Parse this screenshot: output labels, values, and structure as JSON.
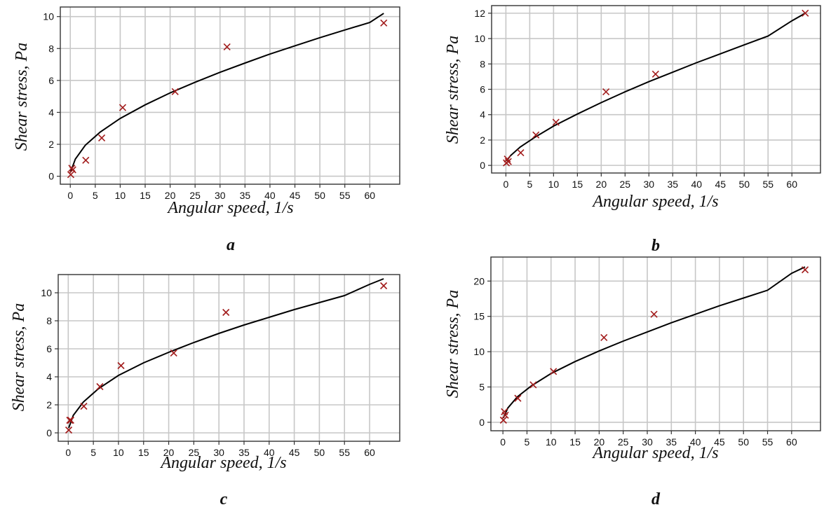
{
  "chart_data": [
    {
      "type": "scatter",
      "panel_label": "a",
      "xlabel": "Angular speed, 1/s",
      "ylabel": "Shear stress, Pa",
      "xlim": [
        -2,
        66
      ],
      "ylim": [
        -0.5,
        10.6
      ],
      "xticks": [
        0,
        5,
        10,
        15,
        20,
        25,
        30,
        35,
        40,
        45,
        50,
        55,
        60
      ],
      "yticks": [
        0,
        2,
        4,
        6,
        8,
        10
      ],
      "grid": true,
      "series": [
        {
          "kind": "measured",
          "color": "#a21c1c",
          "x": [
            0.1,
            0.3,
            0.5,
            3.1,
            6.3,
            10.5,
            21.0,
            31.4,
            62.8
          ],
          "y": [
            0.1,
            0.5,
            0.4,
            1.0,
            2.4,
            4.3,
            5.3,
            8.1,
            9.6
          ]
        },
        {
          "kind": "fit",
          "color": "#000000",
          "x": [
            0.1,
            1,
            3,
            6,
            10,
            15,
            20,
            25,
            30,
            35,
            40,
            45,
            50,
            55,
            60,
            62.8
          ],
          "y": [
            0.3,
            1.07,
            1.94,
            2.77,
            3.62,
            4.47,
            5.22,
            5.89,
            6.51,
            7.09,
            7.65,
            8.17,
            8.68,
            9.16,
            9.63,
            10.2
          ]
        }
      ]
    },
    {
      "type": "scatter",
      "panel_label": "b",
      "xlabel": "Angular speed, 1/s",
      "ylabel": "Shear stress, Pa",
      "xlim": [
        -3,
        66
      ],
      "ylim": [
        -0.6,
        12.6
      ],
      "xticks": [
        0,
        5,
        10,
        15,
        20,
        25,
        30,
        35,
        40,
        45,
        50,
        55,
        60
      ],
      "yticks": [
        0,
        2,
        4,
        6,
        8,
        10,
        12
      ],
      "grid": true,
      "series": [
        {
          "kind": "measured",
          "color": "#a21c1c",
          "x": [
            0.1,
            0.3,
            0.5,
            3.1,
            6.3,
            10.5,
            21.0,
            31.4,
            62.8
          ],
          "y": [
            0.2,
            0.5,
            0.3,
            1.0,
            2.4,
            3.4,
            5.8,
            7.2,
            12.0
          ]
        },
        {
          "kind": "fit",
          "color": "#000000",
          "x": [
            0.1,
            1,
            3,
            6,
            10,
            15,
            20,
            25,
            30,
            35,
            40,
            45,
            50,
            55,
            60,
            62.8
          ],
          "y": [
            0.35,
            0.78,
            1.45,
            2.2,
            3.1,
            4.05,
            4.95,
            5.8,
            6.6,
            7.35,
            8.1,
            8.8,
            9.5,
            10.2,
            11.4,
            12.0
          ]
        }
      ]
    },
    {
      "type": "scatter",
      "panel_label": "c",
      "xlabel": "Angular speed, 1/s",
      "ylabel": "Shear stress, Pa",
      "xlim": [
        -2,
        66
      ],
      "ylim": [
        -0.6,
        11.3
      ],
      "xticks": [
        0,
        5,
        10,
        15,
        20,
        25,
        30,
        35,
        40,
        45,
        50,
        55,
        60
      ],
      "yticks": [
        0,
        2,
        4,
        6,
        8,
        10
      ],
      "grid": true,
      "series": [
        {
          "kind": "measured",
          "color": "#a21c1c",
          "x": [
            0.1,
            0.3,
            0.5,
            3.1,
            6.3,
            10.5,
            21.0,
            31.4,
            62.8
          ],
          "y": [
            0.2,
            0.9,
            0.9,
            1.9,
            3.3,
            4.8,
            5.7,
            8.6,
            10.5
          ]
        },
        {
          "kind": "fit",
          "color": "#000000",
          "x": [
            0.1,
            1,
            3,
            6,
            10,
            15,
            20,
            25,
            30,
            35,
            40,
            45,
            50,
            55,
            60,
            62.8
          ],
          "y": [
            0.35,
            1.25,
            2.2,
            3.15,
            4.1,
            5.0,
            5.75,
            6.45,
            7.1,
            7.7,
            8.25,
            8.8,
            9.3,
            9.8,
            10.6,
            11.0
          ]
        }
      ]
    },
    {
      "type": "scatter",
      "panel_label": "d",
      "xlabel": "Angular speed, 1/s",
      "ylabel": "Shear stress, Pa",
      "xlim": [
        -2.5,
        66
      ],
      "ylim": [
        -1.2,
        23.4
      ],
      "xticks": [
        0,
        5,
        10,
        15,
        20,
        25,
        30,
        35,
        40,
        45,
        50,
        55,
        60
      ],
      "yticks": [
        0,
        5,
        10,
        15,
        20
      ],
      "grid": true,
      "series": [
        {
          "kind": "measured",
          "color": "#a21c1c",
          "x": [
            0.1,
            0.3,
            0.5,
            3.1,
            6.3,
            10.5,
            21.0,
            31.4,
            62.8
          ],
          "y": [
            0.3,
            1.5,
            1.0,
            3.4,
            5.3,
            7.2,
            12.0,
            15.3,
            21.6
          ]
        },
        {
          "kind": "fit",
          "color": "#000000",
          "x": [
            0.1,
            1,
            3,
            6,
            10,
            15,
            20,
            25,
            30,
            35,
            40,
            45,
            50,
            55,
            60,
            62.8
          ],
          "y": [
            0.6,
            2.0,
            3.6,
            5.2,
            6.9,
            8.6,
            10.1,
            11.5,
            12.8,
            14.1,
            15.3,
            16.5,
            17.6,
            18.7,
            21.1,
            22.0
          ]
        }
      ]
    }
  ]
}
